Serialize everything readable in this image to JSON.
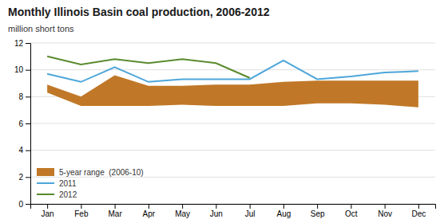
{
  "chart_data": {
    "type": "line",
    "title": "Monthly Illinois Basin coal production, 2006-2012",
    "y_label": "million short tons",
    "categories": [
      "Jan",
      "Feb",
      "Mar",
      "Apr",
      "May",
      "Jun",
      "Jul",
      "Aug",
      "Sep",
      "Oct",
      "Nov",
      "Dec"
    ],
    "series": [
      {
        "name": "5-year range  (2006-10)",
        "type": "area",
        "color": "#C07828",
        "values": [
          8.9,
          8.0,
          9.6,
          8.8,
          8.8,
          8.9,
          8.9,
          9.1,
          9.2,
          9.2,
          9.2,
          9.2
        ],
        "lower": [
          8.3,
          7.3,
          7.3,
          7.3,
          7.4,
          7.3,
          7.3,
          7.3,
          7.5,
          7.5,
          7.4,
          7.2
        ]
      },
      {
        "name": "2011",
        "type": "line",
        "color": "#4da6d9",
        "values": [
          9.7,
          9.1,
          10.2,
          9.1,
          9.3,
          9.3,
          9.3,
          10.7,
          9.3,
          9.5,
          9.8,
          9.9
        ]
      },
      {
        "name": "2012",
        "type": "line",
        "color": "#5a8a2e",
        "values": [
          11.0,
          10.4,
          10.8,
          10.5,
          10.8,
          10.5,
          9.4,
          null,
          null,
          null,
          null,
          null
        ]
      }
    ],
    "ylim": [
      0,
      12
    ],
    "yticks": [
      0,
      2,
      4,
      6,
      8,
      10,
      12
    ],
    "grid": true,
    "legend": "lower left"
  }
}
